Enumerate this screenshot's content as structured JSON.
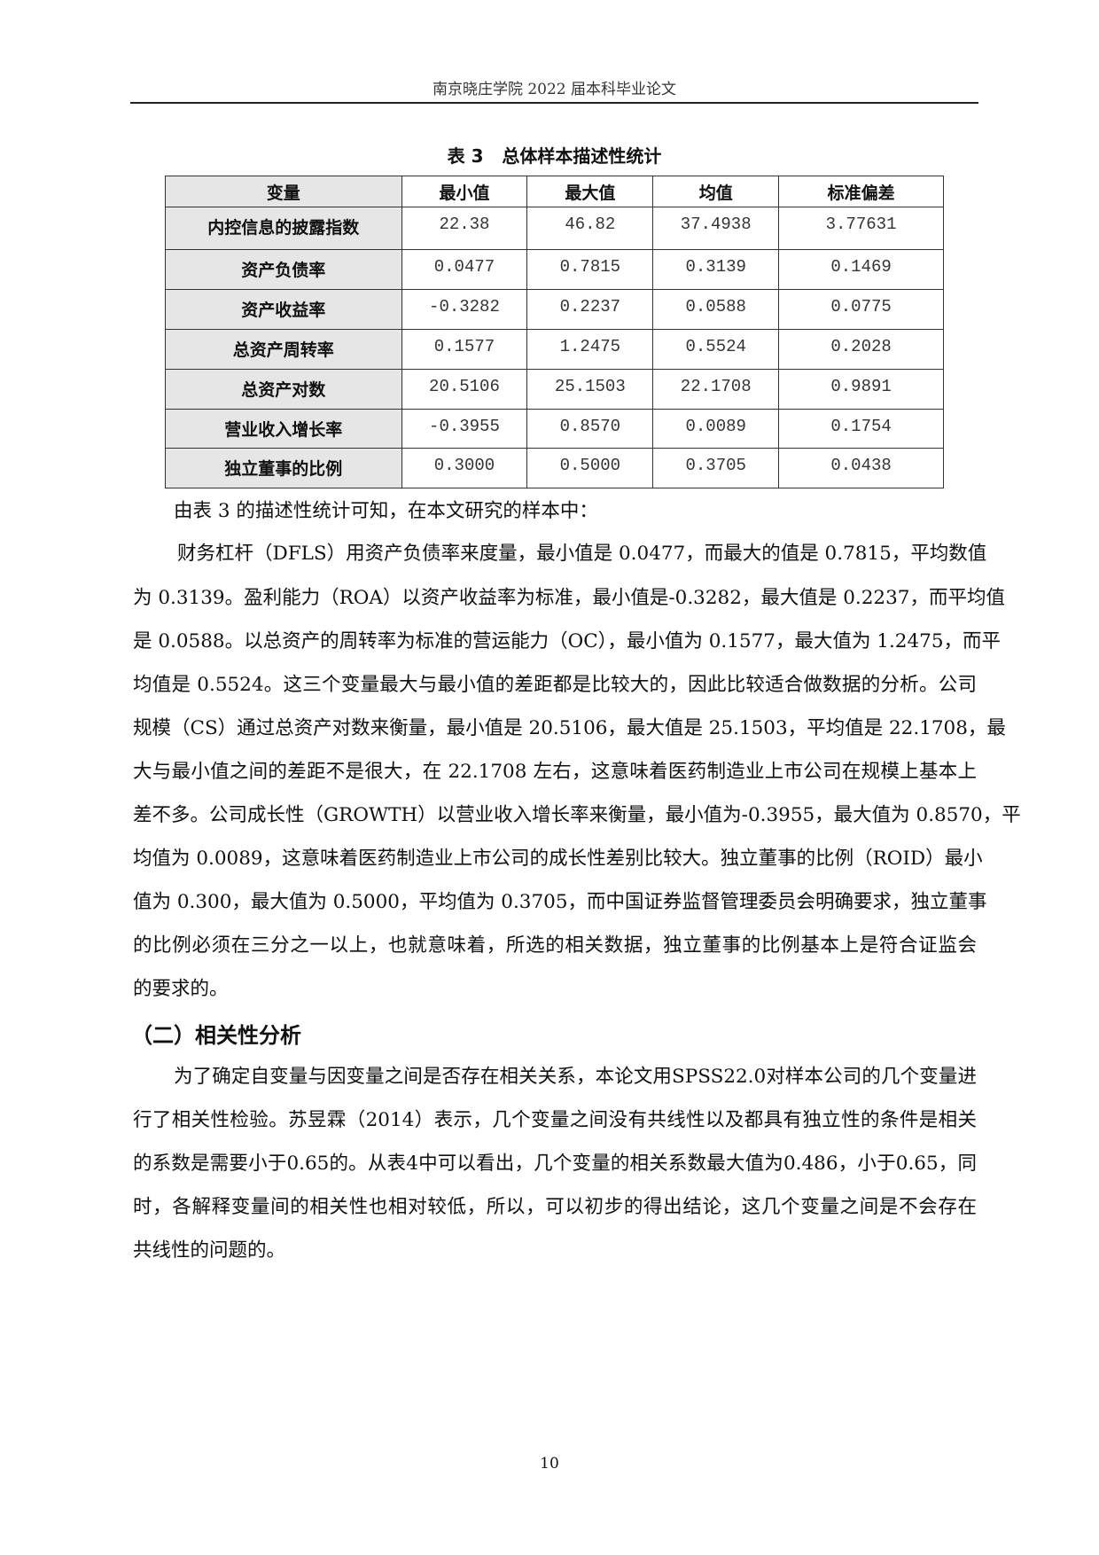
{
  "header": {
    "title": "南京晓庄学院 2022 届本科毕业论文"
  },
  "table": {
    "caption": "表 3   总体样本描述性统计",
    "columns": [
      "变量",
      "最小值",
      "最大值",
      "均值",
      "标准偏差"
    ],
    "rows": [
      [
        "内控信息的披露指数",
        "22.38",
        "46.82",
        "37.4938",
        "3.77631"
      ],
      [
        "资产负债率",
        "0.0477",
        "0.7815",
        "0.3139",
        "0.1469"
      ],
      [
        "资产收益率",
        "-0.3282",
        "0.2237",
        "0.0588",
        "0.0775"
      ],
      [
        "总资产周转率",
        "0.1577",
        "1.2475",
        "0.5524",
        "0.2028"
      ],
      [
        "总资产对数",
        "20.5106",
        "25.1503",
        "22.1708",
        "0.9891"
      ],
      [
        "营业收入增长率",
        "-0.3955",
        "0.8570",
        "0.0089",
        "0.1754"
      ],
      [
        "独立董事的比例",
        "0.3000",
        "0.5000",
        "0.3705",
        "0.0438"
      ]
    ]
  },
  "paragraph1": {
    "lines": [
      "由表 3 的描述性统计可知，在本文研究的样本中：",
      "财务杠杆（DFLS）用资产负债率来度量，最小值是 0.0477，而最大的值是 0.7815，平均数值",
      "为 0.3139。盈利能力（ROA）以资产收益率为标准，最小值是-0.3282，最大值是 0.2237，而平均值",
      "是 0.0588。以总资产的周转率为标准的营运能力（OC），最小值为 0.1577，最大值为 1.2475，而平",
      "均值是 0.5524。这三个变量最大与最小值的差距都是比较大的，因此比较适合做数据的分析。公司",
      "规模（CS）通过总资产对数来衡量，最小值是 20.5106，最大值是 25.1503，平均值是 22.1708，最",
      "大与最小值之间的差距不是很大，在 22.1708 左右，这意味着医药制造业上市公司在规模上基本上",
      "差不多。公司成长性（GROWTH）以营业收入增长率来衡量，最小值为-0.3955，最大值为 0.8570，平",
      "均值为 0.0089，这意味着医药制造业上市公司的成长性差别比较大。独立董事的比例（ROID）最小",
      "值为 0.300，最大值为 0.5000，平均值为 0.3705，而中国证券监督管理委员会明确要求，独立董事",
      "的比例必须在三分之一以上，也就意味着，所选的相关数据，独立董事的比例基本上是符合证监会",
      "的要求的。"
    ]
  },
  "section": {
    "heading": "（二）相关性分析"
  },
  "paragraph2": {
    "lines": [
      "为了确定自变量与因变量之间是否存在相关关系，本论文用SPSS22.0对样本公司的几个变量进",
      "行了相关性检验。苏昱霖（2014）表示，几个变量之间没有共线性以及都具有独立性的条件是相关",
      "的系数是需要小于0.65的。从表4中可以看出，几个变量的相关系数最大值为0.486，小于0.65，同",
      "时，各解释变量间的相关性也相对较低，所以，可以初步的得出结论，这几个变量之间是不会存在",
      "共线性的问题的。"
    ]
  },
  "footer": {
    "page_number": "10"
  }
}
